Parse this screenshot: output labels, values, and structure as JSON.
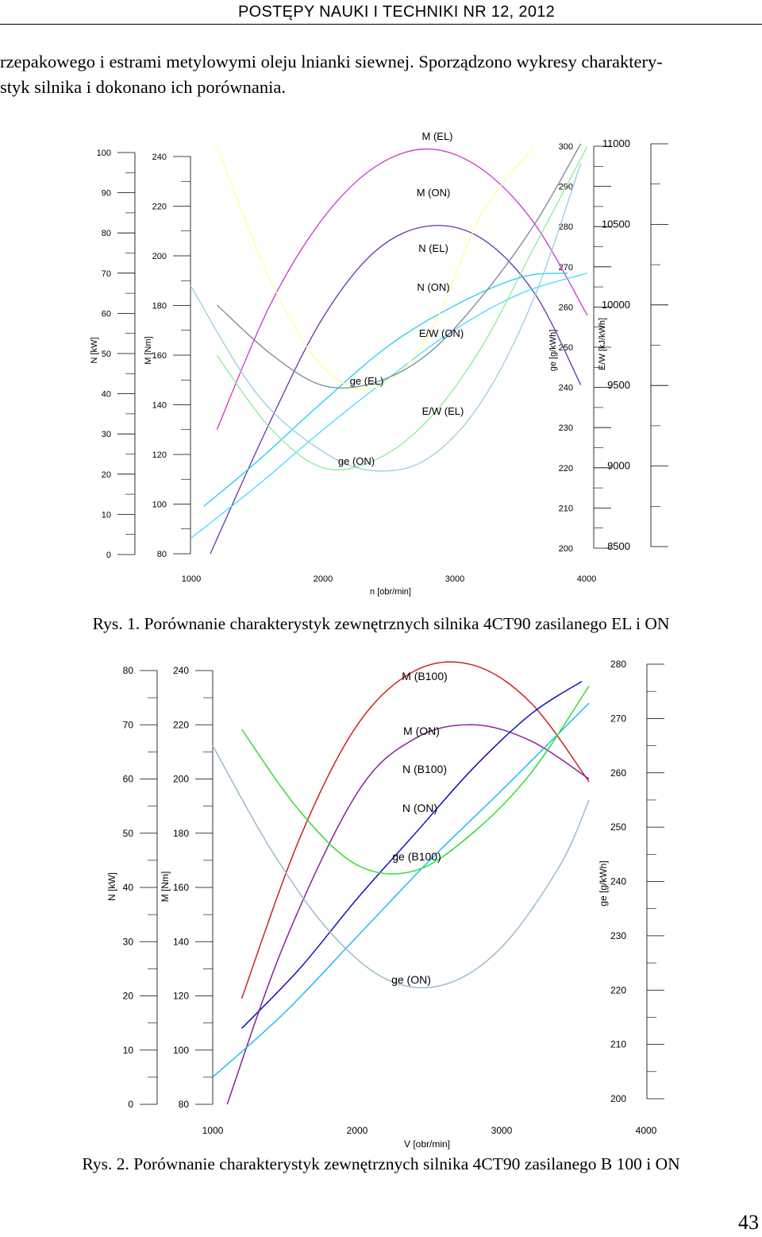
{
  "header": {
    "title": "POSTĘPY NAUKI I TECHNIKI NR 12, 2012"
  },
  "intro": {
    "line1": "rzepakowego i estrami metylowymi oleju lnianki siewnej. Sporządzono wykresy charaktery-",
    "line2": "styk silnika i dokonano ich porównania."
  },
  "figure1": {
    "caption_label": "Rys. 1.",
    "caption_text": "Porównanie charakterystyk zewnętrznych silnika 4CT90 zasilanego EL i ON",
    "axis_titles": {
      "n": "N [kW]",
      "m": "M [Nm]",
      "ge": "g<sub>e</sub> [g/kWh]",
      "ew": "E/W [kJ/kWh]",
      "x": "n [obr/min]"
    },
    "ticks_n": [
      "100",
      "90",
      "80",
      "70",
      "60",
      "50",
      "40",
      "30",
      "20",
      "10",
      "0"
    ],
    "ticks_m": [
      "240",
      "220",
      "200",
      "180",
      "160",
      "140",
      "120",
      "100",
      "80"
    ],
    "ticks_ge": [
      "300",
      "290",
      "280",
      "270",
      "260",
      "250",
      "240",
      "230",
      "220",
      "210",
      "200"
    ],
    "ticks_ew": [
      "11000",
      "10500",
      "10000",
      "9500",
      "9000",
      "8500"
    ],
    "ticks_x": [
      "1000",
      "2000",
      "3000",
      "4000"
    ],
    "labels": [
      "M (EL)",
      "M (ON)",
      "N (EL)",
      "N (ON)",
      "E/W (ON)",
      "ge (EL)",
      "E/W (EL)",
      "ge (ON)"
    ]
  },
  "figure2": {
    "caption_label": "Rys. 2.",
    "caption_text": "Porównanie charakterystyk zewnętrznych silnika 4CT90 zasilanego B 100 i ON",
    "axis_titles": {
      "n": "N [kW]",
      "m": "M [Nm]",
      "ge": "ge [g/kWh]",
      "x": "V [obr/min]"
    },
    "ticks_n": [
      "80",
      "70",
      "60",
      "50",
      "40",
      "30",
      "20",
      "10",
      "0"
    ],
    "ticks_m": [
      "240",
      "220",
      "200",
      "180",
      "160",
      "140",
      "120",
      "100",
      "80"
    ],
    "ticks_ge": [
      "280",
      "270",
      "260",
      "250",
      "240",
      "230",
      "220",
      "210",
      "200"
    ],
    "ticks_x": [
      "1000",
      "2000",
      "3000",
      "4000"
    ],
    "labels": [
      "M (B100)",
      "M (ON)",
      "N (B100)",
      "N (ON)",
      "ge (B100)",
      "ge (ON)"
    ]
  },
  "page_number": "43",
  "chart_data": [
    {
      "type": "line",
      "title": "",
      "xlabel": "n [obr/min]",
      "xlim": [
        1000,
        4000
      ],
      "y_axes": [
        {
          "label": "N [kW]",
          "ylim": [
            0,
            100
          ]
        },
        {
          "label": "M [Nm]",
          "ylim": [
            80,
            240
          ]
        },
        {
          "label": "ge [g/kWh]",
          "ylim": [
            200,
            300
          ]
        },
        {
          "label": "E/W [kJ/kWh]",
          "ylim": [
            8500,
            11000
          ]
        }
      ],
      "series": [
        {
          "name": "M (EL)",
          "axis": "M [Nm]",
          "color": "#cc33cc",
          "x": [
            1200,
            1600,
            2000,
            2400,
            2800,
            3200,
            3600,
            4000
          ],
          "y": [
            130,
            180,
            215,
            236,
            243,
            235,
            213,
            176
          ]
        },
        {
          "name": "M (ON)",
          "axis": "M [Nm]",
          "color": "#6633aa",
          "x": [
            1150,
            1600,
            2000,
            2400,
            2800,
            3200,
            3600,
            3950
          ],
          "y": [
            80,
            133,
            175,
            202,
            212,
            207,
            185,
            148
          ]
        },
        {
          "name": "N (EL)",
          "axis": "N [kW]",
          "color": "#22ccee",
          "x": [
            1100,
            1500,
            2000,
            2500,
            3000,
            3500,
            3850
          ],
          "y": [
            12,
            23,
            38,
            52,
            62,
            69,
            70
          ]
        },
        {
          "name": "N (ON)",
          "axis": "N [kW]",
          "color": "#44ddff",
          "x": [
            1000,
            1500,
            2000,
            2500,
            3000,
            3500,
            4000
          ],
          "y": [
            4,
            17,
            31,
            44,
            56,
            65,
            70
          ]
        },
        {
          "name": "ge (EL)",
          "axis": "ge [g/kWh]",
          "color": "#ffff99",
          "x": [
            1200,
            1600,
            2000,
            2400,
            2800,
            3200,
            3600
          ],
          "y": [
            300,
            267,
            245,
            240,
            253,
            283,
            300
          ]
        },
        {
          "name": "E/W (ON)",
          "axis": "E/W [kJ/kWh]",
          "color": "#778899",
          "x": [
            1200,
            1600,
            2000,
            2400,
            2800,
            3200,
            3600,
            3950
          ],
          "y": [
            10000,
            9700,
            9500,
            9520,
            9700,
            10050,
            10500,
            11000
          ]
        },
        {
          "name": "E/W (EL)",
          "axis": "E/W [kJ/kWh]",
          "color": "#99ccdd",
          "x": [
            1000,
            1500,
            2000,
            2400,
            2800,
            3200,
            3600,
            3950
          ],
          "y": [
            10120,
            9450,
            9090,
            8970,
            9050,
            9400,
            10050,
            10880
          ]
        },
        {
          "name": "ge (ON)",
          "axis": "ge [g/kWh]",
          "color": "#88ee99",
          "x": [
            1200,
            1600,
            2000,
            2400,
            2800,
            3200,
            3600,
            4000
          ],
          "y": [
            248,
            230,
            220,
            222,
            232,
            250,
            275,
            300
          ]
        }
      ]
    },
    {
      "type": "line",
      "title": "",
      "xlabel": "V [obr/min]",
      "xlim": [
        1000,
        4000
      ],
      "y_axes": [
        {
          "label": "N [kW]",
          "ylim": [
            0,
            80
          ]
        },
        {
          "label": "M [Nm]",
          "ylim": [
            80,
            240
          ]
        },
        {
          "label": "ge [g/kWh]",
          "ylim": [
            200,
            280
          ]
        }
      ],
      "series": [
        {
          "name": "M (B100)",
          "axis": "M [Nm]",
          "color": "#cc2222",
          "x": [
            1200,
            1600,
            2000,
            2400,
            2800,
            3200,
            3600
          ],
          "y": [
            119,
            178,
            220,
            240,
            242,
            228,
            199
          ]
        },
        {
          "name": "M (ON)",
          "axis": "M [Nm]",
          "color": "#882299",
          "x": [
            1100,
            1500,
            2000,
            2400,
            2800,
            3200,
            3600
          ],
          "y": [
            80,
            140,
            195,
            215,
            220,
            214,
            200
          ]
        },
        {
          "name": "N (B100)",
          "axis": "N [kW]",
          "color": "#1111bb",
          "x": [
            1200,
            1600,
            2000,
            2400,
            2800,
            3200,
            3550
          ],
          "y": [
            14,
            25,
            38,
            50,
            62,
            72,
            78
          ]
        },
        {
          "name": "N (ON)",
          "axis": "N [kW]",
          "color": "#22bbee",
          "x": [
            1000,
            1500,
            2000,
            2500,
            3000,
            3600
          ],
          "y": [
            5,
            17,
            31,
            45,
            58,
            74
          ]
        },
        {
          "name": "ge (B100)",
          "axis": "ge [g/kWh]",
          "color": "#33dd33",
          "x": [
            1200,
            1600,
            2000,
            2400,
            2800,
            3200,
            3600
          ],
          "y": [
            268,
            253,
            243,
            242,
            249,
            260,
            276
          ]
        },
        {
          "name": "ge (ON)",
          "axis": "ge [g/kWh]",
          "color": "#99bbcc",
          "x": [
            1000,
            1400,
            1800,
            2200,
            2600,
            3000,
            3400,
            3600
          ],
          "y": [
            265,
            246,
            231,
            222,
            221,
            228,
            243,
            255
          ]
        }
      ]
    }
  ]
}
